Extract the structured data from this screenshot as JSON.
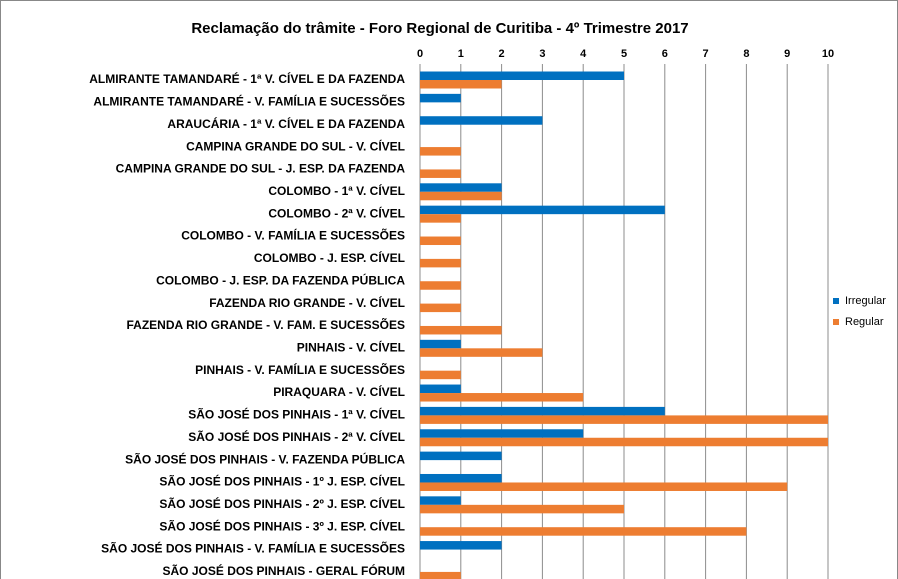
{
  "chart_data": {
    "type": "barh",
    "title": "Reclamação do trâmite - Foro Regional de Curitiba - 4º Trimestre 2017",
    "categories": [
      "ALMIRANTE TAMANDARÉ - 1ª V. CÍVEL E DA FAZENDA",
      "ALMIRANTE TAMANDARÉ -  V. FAMÍLIA E SUCESSÕES",
      "ARAUCÁRIA - 1ª V. CÍVEL E DA FAZENDA",
      "CAMPINA GRANDE DO SUL - V. CÍVEL",
      "CAMPINA GRANDE DO SUL - J. ESP. DA FAZENDA",
      "COLOMBO - 1ª V. CÍVEL",
      "COLOMBO - 2ª V. CÍVEL",
      "COLOMBO - V. FAMÍLIA E SUCESSÕES",
      "COLOMBO - J. ESP. CÍVEL",
      "COLOMBO - J. ESP. DA FAZENDA PÚBLICA",
      "FAZENDA RIO GRANDE - V. CÍVEL",
      "FAZENDA RIO GRANDE - V. FAM. E SUCESSÕES",
      "PINHAIS - V. CÍVEL",
      "PINHAIS - V. FAMÍLIA E SUCESSÕES",
      "PIRAQUARA - V. CÍVEL",
      "SÃO JOSÉ DOS PINHAIS - 1ª V. CÍVEL",
      "SÃO JOSÉ DOS PINHAIS - 2ª V. CÍVEL",
      "SÃO JOSÉ DOS PINHAIS - V. FAZENDA PÚBLICA",
      "SÃO JOSÉ DOS PINHAIS - 1º J. ESP. CÍVEL",
      "SÃO JOSÉ DOS PINHAIS - 2º J. ESP. CÍVEL",
      "SÃO JOSÉ DOS PINHAIS - 3º J. ESP. CÍVEL",
      "SÃO JOSÉ DOS PINHAIS - V. FAMÍLIA E SUCESSÕES",
      "SÃO JOSÉ DOS PINHAIS - GERAL FÓRUM"
    ],
    "series": [
      {
        "name": "Irregular",
        "color": "#0070c0",
        "values": [
          5,
          1,
          3,
          null,
          null,
          2,
          6,
          null,
          null,
          null,
          null,
          null,
          1,
          null,
          1,
          6,
          4,
          2,
          2,
          1,
          null,
          2,
          null
        ]
      },
      {
        "name": "Regular",
        "color": "#ed7d31",
        "values": [
          2,
          null,
          null,
          1,
          1,
          2,
          1,
          1,
          1,
          1,
          1,
          2,
          3,
          1,
          4,
          10,
          10,
          null,
          9,
          5,
          8,
          null,
          1
        ]
      }
    ],
    "xlim": [
      0,
      10
    ],
    "xticks": [
      0,
      1,
      2,
      3,
      4,
      5,
      6,
      7,
      8,
      9,
      10
    ],
    "grid": true,
    "legend": "right"
  }
}
